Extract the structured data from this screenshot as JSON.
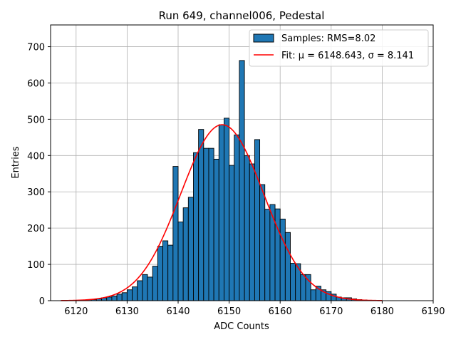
{
  "chart_data": {
    "type": "bar",
    "title": "Run 649, channel006, Pedestal",
    "xlabel": "ADC Counts",
    "ylabel": "Entries",
    "xlim": [
      6115,
      6190
    ],
    "ylim": [
      0,
      760
    ],
    "xticks": [
      6120,
      6130,
      6140,
      6150,
      6160,
      6170,
      6180,
      6190
    ],
    "yticks": [
      0,
      100,
      200,
      300,
      400,
      500,
      600,
      700
    ],
    "grid": true,
    "legend_position": "top-right",
    "histogram": {
      "name": "Samples: RMS=8.02",
      "color": "#1f77b4",
      "edgecolor": "#000000",
      "bin_start": 6120,
      "bin_width": 1,
      "values": [
        1,
        2,
        3,
        3,
        5,
        8,
        10,
        13,
        18,
        22,
        30,
        38,
        55,
        72,
        65,
        95,
        150,
        165,
        153,
        370,
        217,
        256,
        285,
        408,
        472,
        420,
        420,
        390,
        485,
        503,
        373,
        457,
        662,
        400,
        377,
        444,
        320,
        252,
        265,
        253,
        225,
        188,
        103,
        102,
        72,
        72,
        30,
        40,
        30,
        25,
        18,
        10,
        8,
        8,
        5,
        3,
        2
      ]
    },
    "fit": {
      "name": "Fit: μ = 6148.643, σ = 8.141",
      "color": "#ff0000",
      "mu": 6148.643,
      "sigma": 8.141,
      "amplitude": 485,
      "x_range": [
        6117,
        6180
      ]
    }
  }
}
